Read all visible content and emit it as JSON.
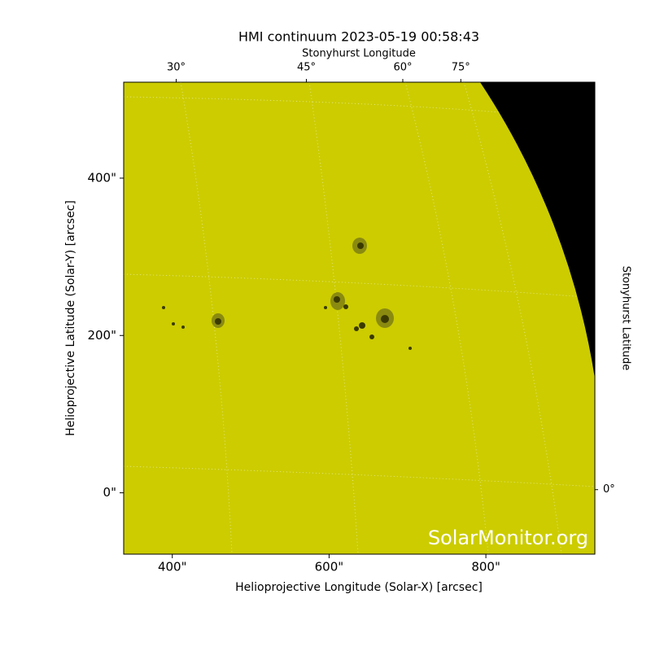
{
  "chart_data": {
    "type": "image",
    "title": "HMI continuum 2023-05-19 00:58:43",
    "x_label": "Helioprojective Longitude (Solar-X) [arcsec]",
    "y_label": "Helioprojective Latitude (Solar-Y) [arcsec]",
    "top_label": "Stonyhurst Longitude",
    "right_label": "Stonyhurst Latitude",
    "watermark": "SolarMonitor.org",
    "xlim": [
      338,
      939
    ],
    "ylim": [
      -78,
      522
    ],
    "xticks": [
      {
        "value": 400,
        "label": "400\""
      },
      {
        "value": 600,
        "label": "600\""
      },
      {
        "value": 800,
        "label": "800\""
      }
    ],
    "yticks": [
      {
        "value": 0,
        "label": "0\""
      },
      {
        "value": 200,
        "label": "200\""
      },
      {
        "value": 400,
        "label": "400\""
      }
    ],
    "top_ticks": [
      {
        "value": 405,
        "label": "30°"
      },
      {
        "value": 571,
        "label": "45°"
      },
      {
        "value": 694,
        "label": "60°"
      },
      {
        "value": 768,
        "label": "75°"
      }
    ],
    "right_ticks": [
      {
        "value": 4,
        "label": "0°"
      }
    ],
    "color": "#cccc00"
  }
}
